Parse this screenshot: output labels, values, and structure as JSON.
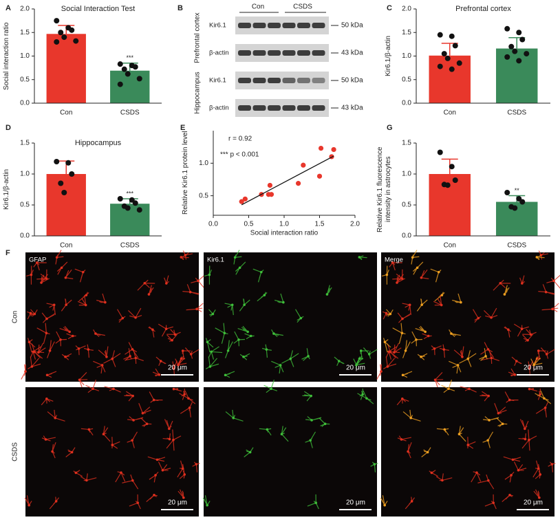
{
  "chart_data": [
    {
      "panel": "A",
      "type": "bar",
      "title": "Social Interaction Test",
      "y_label": "Social interaction ratio",
      "categories": [
        "Con",
        "CSDS"
      ],
      "values": [
        1.47,
        0.69
      ],
      "errors": [
        0.18,
        0.16
      ],
      "points": [
        [
          1.75,
          1.6,
          1.55,
          1.5,
          1.4,
          1.32,
          1.3
        ],
        [
          0.83,
          0.8,
          0.77,
          0.72,
          0.62,
          0.52,
          0.4
        ]
      ],
      "significance": [
        null,
        "***"
      ],
      "colors": [
        "#e8372c",
        "#3a8a5a"
      ],
      "ylim": [
        0,
        2
      ],
      "yticks": [
        {
          "value": 0,
          "label": "0.0"
        },
        {
          "value": 0.5,
          "label": "0.5"
        },
        {
          "value": 1,
          "label": "1.0"
        },
        {
          "value": 1.5,
          "label": "1.5"
        },
        {
          "value": 2,
          "label": "2.0"
        }
      ]
    },
    {
      "panel": "C",
      "type": "bar",
      "title": "Prefrontal cortex",
      "y_label": "Kir6.1/β-actin",
      "categories": [
        "Con",
        "CSDS"
      ],
      "values": [
        1.01,
        1.16
      ],
      "errors": [
        0.26,
        0.23
      ],
      "points": [
        [
          1.45,
          1.42,
          1.22,
          1.05,
          0.95,
          0.85,
          0.78,
          0.72
        ],
        [
          1.58,
          1.5,
          1.35,
          1.2,
          1.1,
          1.05,
          0.98,
          0.9
        ]
      ],
      "significance": [
        null,
        null
      ],
      "colors": [
        "#e8372c",
        "#3a8a5a"
      ],
      "ylim": [
        0,
        2
      ],
      "yticks": [
        {
          "value": 0,
          "label": "0.0"
        },
        {
          "value": 0.5,
          "label": "0.5"
        },
        {
          "value": 1,
          "label": "1.0"
        },
        {
          "value": 1.5,
          "label": "1.5"
        },
        {
          "value": 2,
          "label": "2.0"
        }
      ]
    },
    {
      "panel": "D",
      "type": "bar",
      "title": "Hippocampus",
      "y_label": "Kir6.1/β-actin",
      "categories": [
        "Con",
        "CSDS"
      ],
      "values": [
        1.0,
        0.52
      ],
      "errors": [
        0.21,
        0.08
      ],
      "points": [
        [
          1.2,
          1.18,
          1.0,
          0.85,
          0.7
        ],
        [
          0.6,
          0.58,
          0.53,
          0.48,
          0.45,
          0.42
        ]
      ],
      "significance": [
        null,
        "***"
      ],
      "colors": [
        "#e8372c",
        "#3a8a5a"
      ],
      "ylim": [
        0,
        1.5
      ],
      "yticks": [
        {
          "value": 0,
          "label": "0.0"
        },
        {
          "value": 0.5,
          "label": "0.5"
        },
        {
          "value": 1,
          "label": "1.0"
        },
        {
          "value": 1.5,
          "label": "1.5"
        }
      ]
    },
    {
      "panel": "E",
      "type": "scatter",
      "x_label": "Social interaction ratio",
      "y_label": "Relative Kir6.1 protein level",
      "x": [
        0.4,
        0.45,
        0.68,
        0.78,
        0.82,
        0.8,
        1.2,
        1.27,
        1.5,
        1.52,
        1.67,
        1.7
      ],
      "y": [
        0.41,
        0.45,
        0.52,
        0.52,
        0.52,
        0.66,
        0.69,
        0.97,
        0.8,
        1.23,
        1.1,
        1.21
      ],
      "trendline": {
        "x": [
          0.4,
          1.7
        ],
        "y": [
          0.36,
          1.11
        ]
      },
      "annotations": [
        "r = 0.92",
        "*** p < 0.001"
      ],
      "color": "#e8372c",
      "xlim": [
        0,
        2
      ],
      "xticks": [
        {
          "value": 0,
          "label": "0.0"
        },
        {
          "value": 0.5,
          "label": "0.5"
        },
        {
          "value": 1,
          "label": "1.0"
        },
        {
          "value": 1.5,
          "label": "1.5"
        },
        {
          "value": 2,
          "label": "2.0"
        }
      ],
      "ylim": [
        0.2,
        1.5
      ],
      "yticks": [
        0.5,
        {
          "value": 1,
          "label": "1.0"
        }
      ]
    },
    {
      "panel": "G",
      "type": "bar",
      "y_label": "Relative Kir6.1 fluorescence intensity in astrocytes",
      "categories": [
        "Con",
        "CSDS"
      ],
      "values": [
        1.0,
        0.55
      ],
      "errors": [
        0.24,
        0.1
      ],
      "points": [
        [
          1.35,
          1.12,
          0.9,
          0.83,
          0.82
        ],
        [
          0.7,
          0.6,
          0.55,
          0.47,
          0.45
        ]
      ],
      "significance": [
        null,
        "**"
      ],
      "colors": [
        "#e8372c",
        "#3a8a5a"
      ],
      "ylim": [
        0,
        1.5
      ],
      "yticks": [
        {
          "value": 0,
          "label": "0.0"
        },
        {
          "value": 0.5,
          "label": "0.5"
        },
        {
          "value": 1,
          "label": "1.0"
        },
        {
          "value": 1.5,
          "label": "1.5"
        }
      ]
    }
  ],
  "western_blot": {
    "panel": "B",
    "groups": [
      "Con",
      "CSDS"
    ],
    "regions": [
      "Prefrontal cortex",
      "Hippocampus"
    ],
    "proteins": [
      "Kir6.1",
      "β-actin"
    ],
    "sizes": [
      "50 kDa",
      "43 kDa"
    ]
  },
  "micrographs": {
    "panel": "F",
    "columns": [
      "GFAP",
      "Kir6.1",
      "Merge"
    ],
    "rows": [
      "Con",
      "CSDS"
    ],
    "scale_bar": "20 μm"
  }
}
